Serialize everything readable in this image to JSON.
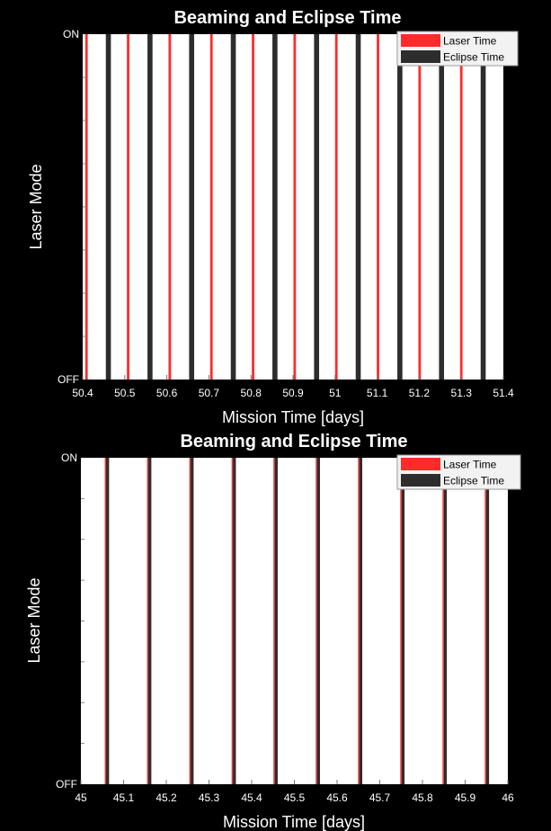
{
  "figure": {
    "background": "#000000",
    "plot_background": "#ffffff",
    "text_color": "#ffffff"
  },
  "chart_data": [
    {
      "type": "bar",
      "title": "Beaming and Eclipse Time",
      "xlabel": "Mission Time [days]",
      "ylabel": "Laser Mode",
      "xlim": [
        50.4,
        51.4
      ],
      "x_ticks": [
        "50.4",
        "50.5",
        "50.6",
        "50.7",
        "50.8",
        "50.9",
        "51",
        "51.1",
        "51.2",
        "51.3",
        "51.4"
      ],
      "y_ticks": [
        "OFF",
        "ON"
      ],
      "grid": false,
      "legend_position": "top-right",
      "series": [
        {
          "name": "Laser Time",
          "color": "#ff2b2b",
          "intervals": [
            [
              50.406,
              50.412
            ],
            [
              50.505,
              50.511
            ],
            [
              50.604,
              50.61
            ],
            [
              50.703,
              50.709
            ],
            [
              50.802,
              50.808
            ],
            [
              50.901,
              50.907
            ],
            [
              51.0,
              51.006
            ],
            [
              51.099,
              51.105
            ],
            [
              51.198,
              51.204
            ],
            [
              51.297,
              51.303
            ]
          ]
        },
        {
          "name": "Eclipse Time",
          "color": "#2d2d2d",
          "intervals": [
            [
              50.455,
              50.467
            ],
            [
              50.554,
              50.566
            ],
            [
              50.653,
              50.665
            ],
            [
              50.752,
              50.764
            ],
            [
              50.851,
              50.863
            ],
            [
              50.95,
              50.962
            ],
            [
              51.049,
              51.061
            ],
            [
              51.148,
              51.16
            ],
            [
              51.247,
              51.259
            ],
            [
              51.346,
              51.358
            ]
          ]
        }
      ]
    },
    {
      "type": "bar",
      "title": "Beaming and Eclipse Time",
      "xlabel": "Mission Time [days]",
      "ylabel": "Laser Mode",
      "xlim": [
        45,
        46
      ],
      "x_ticks": [
        "45",
        "45.1",
        "45.2",
        "45.3",
        "45.4",
        "45.5",
        "45.6",
        "45.7",
        "45.8",
        "45.9",
        "46"
      ],
      "y_ticks": [
        "OFF",
        "ON"
      ],
      "grid": false,
      "legend_position": "top-right",
      "series": [
        {
          "name": "Laser Time",
          "color": "#ff2b2b",
          "intervals": [
            [
              45.056,
              45.059
            ],
            [
              45.155,
              45.158
            ],
            [
              45.254,
              45.257
            ],
            [
              45.353,
              45.356
            ],
            [
              45.451,
              45.454
            ],
            [
              45.55,
              45.553
            ],
            [
              45.649,
              45.652
            ],
            [
              45.748,
              45.751
            ],
            [
              45.847,
              45.85
            ],
            [
              45.946,
              45.949
            ]
          ]
        },
        {
          "name": "Eclipse Time",
          "color": "#2d2d2d",
          "intervals": [
            [
              45.059,
              45.066
            ],
            [
              45.158,
              45.165
            ],
            [
              45.257,
              45.264
            ],
            [
              45.356,
              45.363
            ],
            [
              45.454,
              45.461
            ],
            [
              45.553,
              45.56
            ],
            [
              45.652,
              45.659
            ],
            [
              45.751,
              45.758
            ],
            [
              45.85,
              45.857
            ],
            [
              45.949,
              45.956
            ]
          ]
        }
      ]
    }
  ]
}
